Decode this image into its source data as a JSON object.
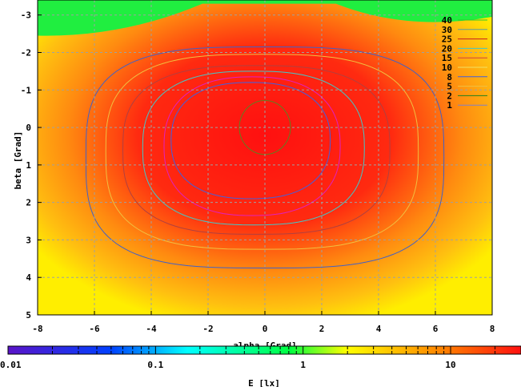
{
  "chart_data": {
    "type": "heatmap",
    "title": "",
    "xlabel": "alpha [Grad]",
    "ylabel": "beta [Grad]",
    "xlim": [
      -8,
      8
    ],
    "ylim": [
      -3.4,
      5
    ],
    "y_inverted": true,
    "xticks": [
      -8,
      -6,
      -4,
      -2,
      0,
      2,
      4,
      6,
      8
    ],
    "yticks": [
      -3,
      -2,
      -1,
      0,
      1,
      2,
      3,
      4,
      5
    ],
    "grid": true,
    "colorbar": {
      "label": "E [lx]",
      "scale": "log",
      "range": [
        0.01,
        30
      ],
      "ticks": [
        {
          "value": 0.01,
          "label": "0.01"
        },
        {
          "value": 0.1,
          "label": "0.1"
        },
        {
          "value": 1,
          "label": "1"
        },
        {
          "value": 10,
          "label": "10"
        }
      ],
      "colors": [
        "#5a14c8",
        "#0040ff",
        "#00ffff",
        "#00ff40",
        "#ffff00",
        "#ff8000",
        "#ff1010"
      ]
    },
    "contours": [
      {
        "level": "40",
        "color": "#2ec82e"
      },
      {
        "level": "30",
        "color": "#5f9ea0"
      },
      {
        "level": "25",
        "color": "#c81e1e"
      },
      {
        "level": "20",
        "color": "#40c8c8"
      },
      {
        "level": "15",
        "color": "#d24040"
      },
      {
        "level": "10",
        "color": "#f0e060"
      },
      {
        "level": "8",
        "color": "#4060e0"
      },
      {
        "level": "5",
        "color": "#f0c040"
      },
      {
        "level": "2",
        "color": "#208020"
      },
      {
        "level": "1",
        "color": "#8080c8"
      }
    ],
    "drawn_contours": [
      {
        "level": 2,
        "color": "#4060c8",
        "cx": 0,
        "cy": 0.8,
        "rx": 6.3,
        "ry": 2.95,
        "power": 3.2
      },
      {
        "level": 5,
        "color": "#f0c040",
        "cx": -0.1,
        "cy": 0.65,
        "rx": 5.5,
        "ry": 2.6,
        "power": 3.0
      },
      {
        "level": 8,
        "color": "#b04040",
        "cx": -0.3,
        "cy": 0.6,
        "rx": 4.7,
        "ry": 2.25,
        "power": 2.8
      },
      {
        "level": 10,
        "color": "#40c8c8",
        "cx": -0.4,
        "cy": 0.55,
        "rx": 3.9,
        "ry": 2.05,
        "power": 2.6
      },
      {
        "level": 15,
        "color": "#e020c0",
        "cx": -0.45,
        "cy": 0.5,
        "rx": 3.1,
        "ry": 1.85,
        "power": 2.4
      },
      {
        "level": 20,
        "color": "#4060e0",
        "cx": -0.5,
        "cy": 0.35,
        "rx": 2.8,
        "ry": 1.55,
        "power": 2.4
      },
      {
        "level": 30,
        "color": "#608020",
        "cx": 0.0,
        "cy": 0.0,
        "rx": 0.9,
        "ry": 0.72,
        "power": 2.0
      }
    ],
    "green_region_top_y": -2.45
  }
}
